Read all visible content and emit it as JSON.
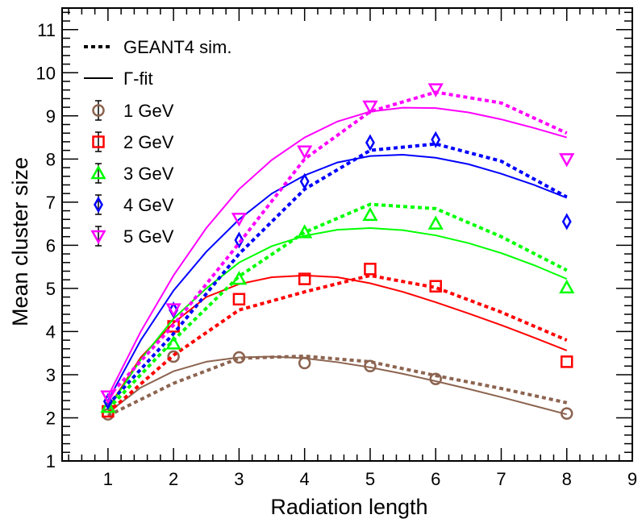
{
  "chart_data": {
    "type": "line",
    "title": "",
    "xlabel": "Radiation length",
    "ylabel": "Mean cluster size",
    "xlim": [
      0.3,
      9
    ],
    "ylim": [
      1,
      11.5
    ],
    "x_ticks": [
      "1",
      "2",
      "3",
      "4",
      "5",
      "6",
      "7",
      "8",
      "9"
    ],
    "y_ticks": [
      "1",
      "2",
      "3",
      "4",
      "5",
      "6",
      "7",
      "8",
      "9",
      "10",
      "11"
    ],
    "grid": false,
    "legend_position": "top-left",
    "legend": {
      "sim_label": "GEANT4 sim.",
      "fit_label": "Γ-fit"
    },
    "series": [
      {
        "name": "1 GeV",
        "color": "#8c6450",
        "marker": "circle",
        "data_x": [
          1,
          2,
          3,
          4,
          5,
          6,
          8
        ],
        "data_y": [
          2.08,
          3.42,
          3.4,
          3.27,
          3.2,
          2.9,
          2.1
        ],
        "sim_x": [
          1,
          2,
          3,
          4,
          5,
          6,
          7,
          8
        ],
        "sim_y": [
          2.05,
          2.8,
          3.38,
          3.43,
          3.3,
          2.98,
          2.68,
          2.35
        ],
        "fit_x": [
          1,
          1.5,
          2,
          2.5,
          3,
          3.5,
          4,
          4.5,
          5,
          5.5,
          6,
          6.5,
          7,
          7.5,
          8
        ],
        "fit_y": [
          2.12,
          2.7,
          3.08,
          3.3,
          3.4,
          3.42,
          3.38,
          3.29,
          3.17,
          3.02,
          2.85,
          2.67,
          2.48,
          2.28,
          2.08
        ]
      },
      {
        "name": "2 GeV",
        "color": "#ff0000",
        "marker": "square",
        "data_x": [
          1,
          2,
          3,
          4,
          5,
          6,
          8
        ],
        "data_y": [
          2.15,
          4.12,
          4.75,
          5.22,
          5.45,
          5.05,
          3.3
        ],
        "sim_x": [
          1,
          2,
          3,
          4,
          5,
          6,
          7,
          8
        ],
        "sim_y": [
          2.12,
          3.45,
          4.5,
          4.92,
          5.3,
          5.02,
          4.45,
          3.8
        ],
        "fit_x": [
          1,
          1.5,
          2,
          2.5,
          3,
          3.5,
          4,
          4.5,
          5,
          5.5,
          6,
          6.5,
          7,
          7.5,
          8
        ],
        "fit_y": [
          2.22,
          3.4,
          4.2,
          4.8,
          5.1,
          5.26,
          5.3,
          5.26,
          5.12,
          4.92,
          4.68,
          4.42,
          4.15,
          3.86,
          3.56
        ]
      },
      {
        "name": "3 GeV",
        "color": "#00ff00",
        "marker": "triangle-up",
        "data_x": [
          1,
          2,
          3,
          4,
          5,
          6,
          8
        ],
        "data_y": [
          2.25,
          3.72,
          5.22,
          6.3,
          6.7,
          6.5,
          5.02
        ],
        "sim_x": [
          1,
          2,
          3,
          4,
          5,
          6,
          7,
          8
        ],
        "sim_y": [
          2.2,
          3.8,
          5.28,
          6.3,
          6.95,
          6.85,
          6.2,
          5.42
        ],
        "fit_x": [
          1,
          1.5,
          2,
          2.5,
          3,
          3.5,
          4,
          4.5,
          5,
          5.5,
          6,
          6.5,
          7,
          7.5,
          8
        ],
        "fit_y": [
          2.2,
          3.35,
          4.3,
          5.0,
          5.6,
          5.98,
          6.22,
          6.36,
          6.4,
          6.35,
          6.23,
          6.05,
          5.82,
          5.54,
          5.22
        ]
      },
      {
        "name": "4 GeV",
        "color": "#0000ff",
        "marker": "diamond",
        "data_x": [
          1,
          2,
          3,
          4,
          5,
          6,
          8
        ],
        "data_y": [
          2.38,
          4.5,
          6.12,
          7.48,
          8.38,
          8.45,
          6.55
        ],
        "sim_x": [
          1,
          2,
          3,
          4,
          5,
          6,
          7,
          8
        ],
        "sim_y": [
          2.3,
          3.95,
          5.8,
          7.3,
          8.2,
          8.35,
          7.95,
          7.12
        ],
        "fit_x": [
          1,
          1.5,
          2,
          2.5,
          3,
          3.5,
          4,
          4.5,
          5,
          5.5,
          6,
          6.5,
          7,
          7.5,
          8
        ],
        "fit_y": [
          2.4,
          3.8,
          4.95,
          5.85,
          6.6,
          7.2,
          7.62,
          7.92,
          8.07,
          8.1,
          8.03,
          7.88,
          7.66,
          7.4,
          7.1
        ]
      },
      {
        "name": "5 GeV",
        "color": "#ff00ff",
        "marker": "triangle-down",
        "data_x": [
          1,
          2,
          3,
          4,
          5,
          6,
          8
        ],
        "data_y": [
          2.5,
          4.52,
          6.62,
          8.18,
          9.22,
          9.62,
          8.0
        ],
        "sim_x": [
          1,
          2,
          3,
          4,
          5,
          6,
          7,
          8
        ],
        "sim_y": [
          2.48,
          4.15,
          6.05,
          8.0,
          9.1,
          9.55,
          9.3,
          8.6
        ],
        "fit_x": [
          1,
          1.5,
          2,
          2.5,
          3,
          3.5,
          4,
          4.5,
          5,
          5.5,
          6,
          6.5,
          7,
          7.5,
          8
        ],
        "fit_y": [
          2.5,
          4.0,
          5.3,
          6.4,
          7.3,
          7.98,
          8.5,
          8.87,
          9.1,
          9.19,
          9.18,
          9.08,
          8.92,
          8.72,
          8.5
        ]
      }
    ]
  }
}
